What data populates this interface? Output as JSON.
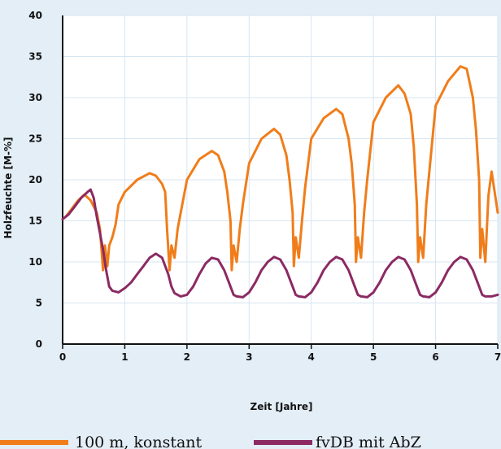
{
  "chart_data": {
    "type": "line",
    "title": "",
    "xlabel": "Zeit [Jahre]",
    "ylabel": "Holzfeuchte [M-%]",
    "xlim": [
      0,
      7
    ],
    "ylim": [
      0,
      40
    ],
    "x_ticks": [
      0,
      1,
      2,
      3,
      4,
      5,
      6,
      7
    ],
    "y_ticks": [
      0,
      5,
      10,
      15,
      20,
      25,
      30,
      35,
      40
    ],
    "x_tick_labels": [
      "0",
      "1",
      "2",
      "3",
      "4",
      "5",
      "6",
      "7"
    ],
    "y_tick_labels": [
      "0",
      "5",
      "10",
      "15",
      "20",
      "25",
      "30",
      "35",
      "40"
    ],
    "grid": true,
    "legend_position": "bottom",
    "series": [
      {
        "name": "100 m, konstant",
        "color": "#f07d1a",
        "x": [
          0,
          0.05,
          0.15,
          0.25,
          0.35,
          0.45,
          0.55,
          0.6,
          0.63,
          0.65,
          0.68,
          0.72,
          0.75,
          0.8,
          0.85,
          0.9,
          1.0,
          1.2,
          1.4,
          1.5,
          1.6,
          1.65,
          1.68,
          1.72,
          1.75,
          1.8,
          1.85,
          1.9,
          2.0,
          2.2,
          2.4,
          2.5,
          2.6,
          2.65,
          2.7,
          2.72,
          2.75,
          2.8,
          2.85,
          2.9,
          3.0,
          3.2,
          3.4,
          3.5,
          3.6,
          3.65,
          3.7,
          3.72,
          3.75,
          3.8,
          3.85,
          3.9,
          4.0,
          4.2,
          4.4,
          4.5,
          4.6,
          4.65,
          4.7,
          4.72,
          4.75,
          4.8,
          4.85,
          4.9,
          5.0,
          5.2,
          5.4,
          5.5,
          5.6,
          5.65,
          5.7,
          5.72,
          5.75,
          5.8,
          5.85,
          5.9,
          6.0,
          6.2,
          6.4,
          6.5,
          6.6,
          6.65,
          6.7,
          6.72,
          6.75,
          6.8,
          6.85,
          6.9,
          7.0
        ],
        "values": [
          15.2,
          15.5,
          16.5,
          17.5,
          18.2,
          17.5,
          16,
          14,
          11,
          9,
          12,
          9.5,
          12,
          13,
          14.5,
          17,
          18.5,
          20,
          20.8,
          20.5,
          19.5,
          18.5,
          14,
          9,
          12,
          10.5,
          14,
          16,
          20,
          22.5,
          23.5,
          23,
          21,
          18.5,
          15,
          9,
          12,
          10,
          14,
          17,
          22,
          25,
          26.2,
          25.5,
          23,
          20,
          16,
          9.5,
          13,
          10.5,
          15,
          19,
          25,
          27.5,
          28.6,
          28,
          25,
          22,
          17,
          10,
          13,
          10.5,
          16,
          20,
          27,
          30,
          31.5,
          30.5,
          28,
          24,
          17,
          10,
          13,
          10.5,
          17,
          21,
          29,
          32,
          33.8,
          33.5,
          30,
          26,
          20,
          10.5,
          14,
          10,
          18,
          21,
          16
        ]
      },
      {
        "name": "fvDB mit AbZ",
        "color": "#8b2a63",
        "x": [
          0,
          0.1,
          0.2,
          0.3,
          0.4,
          0.45,
          0.5,
          0.55,
          0.6,
          0.65,
          0.7,
          0.75,
          0.8,
          0.9,
          1.0,
          1.1,
          1.2,
          1.3,
          1.4,
          1.5,
          1.6,
          1.7,
          1.75,
          1.8,
          1.9,
          2.0,
          2.1,
          2.2,
          2.3,
          2.4,
          2.5,
          2.6,
          2.7,
          2.75,
          2.8,
          2.9,
          3.0,
          3.1,
          3.2,
          3.3,
          3.4,
          3.5,
          3.6,
          3.7,
          3.75,
          3.8,
          3.9,
          4.0,
          4.1,
          4.2,
          4.3,
          4.4,
          4.5,
          4.6,
          4.7,
          4.75,
          4.8,
          4.9,
          5.0,
          5.1,
          5.2,
          5.3,
          5.4,
          5.5,
          5.6,
          5.7,
          5.75,
          5.8,
          5.9,
          6.0,
          6.1,
          6.2,
          6.3,
          6.4,
          6.5,
          6.6,
          6.7,
          6.75,
          6.8,
          6.9,
          7.0
        ],
        "values": [
          15.2,
          15.8,
          16.8,
          17.8,
          18.5,
          18.8,
          17.8,
          15.5,
          13.5,
          11.5,
          9,
          7,
          6.5,
          6.3,
          6.8,
          7.5,
          8.5,
          9.5,
          10.5,
          11,
          10.5,
          8.5,
          7,
          6.2,
          5.8,
          6,
          7,
          8.5,
          9.8,
          10.5,
          10.3,
          9,
          7,
          6,
          5.8,
          5.7,
          6.3,
          7.5,
          9,
          10,
          10.6,
          10.3,
          9,
          7,
          6,
          5.8,
          5.7,
          6.3,
          7.5,
          9,
          10,
          10.6,
          10.3,
          9,
          7,
          6,
          5.8,
          5.7,
          6.3,
          7.5,
          9,
          10,
          10.6,
          10.3,
          9,
          7,
          6,
          5.8,
          5.7,
          6.3,
          7.5,
          9,
          10,
          10.6,
          10.3,
          9,
          7,
          6,
          5.8,
          5.8,
          6
        ]
      }
    ]
  }
}
